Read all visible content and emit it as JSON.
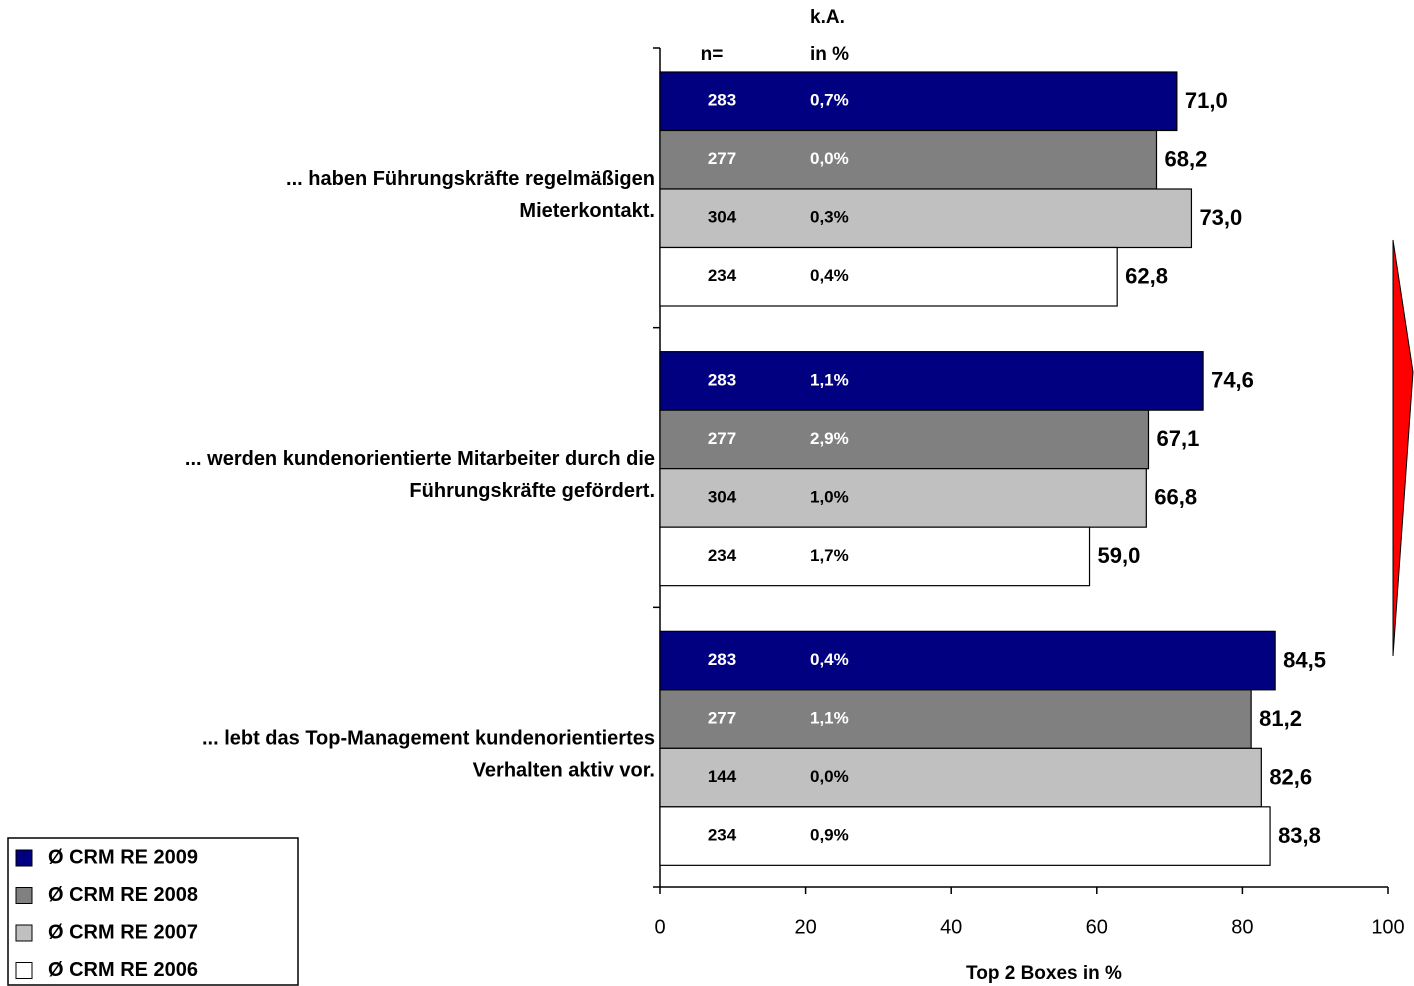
{
  "chart_data": {
    "type": "bar",
    "orientation": "horizontal",
    "x_label": "Top 2 Boxes in %",
    "column_headers": {
      "n": "n=",
      "ka": [
        "k.A.",
        "in %"
      ]
    },
    "categories": [
      [
        "... haben Führungskräfte regelmäßigen",
        "Mieterkontakt."
      ],
      [
        "... werden kundenorientierte Mitarbeiter durch die",
        "Führungskräfte gefördert."
      ],
      [
        "... lebt das Top-Management kundenorientiertes",
        "Verhalten aktiv vor."
      ]
    ],
    "series": [
      {
        "name": "Ø CRM RE 2009",
        "color": "#000080",
        "text_color": "#ffffff",
        "values": [
          71.0,
          74.6,
          84.5
        ],
        "value_labels": [
          "71,0",
          "74,6",
          "84,5"
        ],
        "n": [
          283,
          283,
          283
        ],
        "ka": [
          "0,7%",
          "1,1%",
          "0,4%"
        ]
      },
      {
        "name": "Ø CRM RE 2008",
        "color": "#808080",
        "text_color": "#ffffff",
        "values": [
          68.2,
          67.1,
          81.2
        ],
        "value_labels": [
          "68,2",
          "67,1",
          "81,2"
        ],
        "n": [
          277,
          277,
          277
        ],
        "ka": [
          "0,0%",
          "2,9%",
          "1,1%"
        ]
      },
      {
        "name": "Ø CRM RE 2007",
        "color": "#c0c0c0",
        "text_color": "#000000",
        "values": [
          73.0,
          66.8,
          82.6
        ],
        "value_labels": [
          "73,0",
          "66,8",
          "82,6"
        ],
        "n": [
          304,
          304,
          144
        ],
        "ka": [
          "0,3%",
          "1,0%",
          "0,0%"
        ]
      },
      {
        "name": "Ø CRM RE 2006",
        "color": "#ffffff",
        "text_color": "#000000",
        "values": [
          62.8,
          59.0,
          83.8
        ],
        "value_labels": [
          "62,8",
          "59,0",
          "83,8"
        ],
        "n": [
          234,
          234,
          234
        ],
        "ka": [
          "0,4%",
          "1,7%",
          "0,9%"
        ]
      }
    ],
    "xlim": [
      0,
      100
    ],
    "xticks": [
      0,
      20,
      40,
      60,
      80,
      100
    ],
    "legend": "bottom-left"
  }
}
